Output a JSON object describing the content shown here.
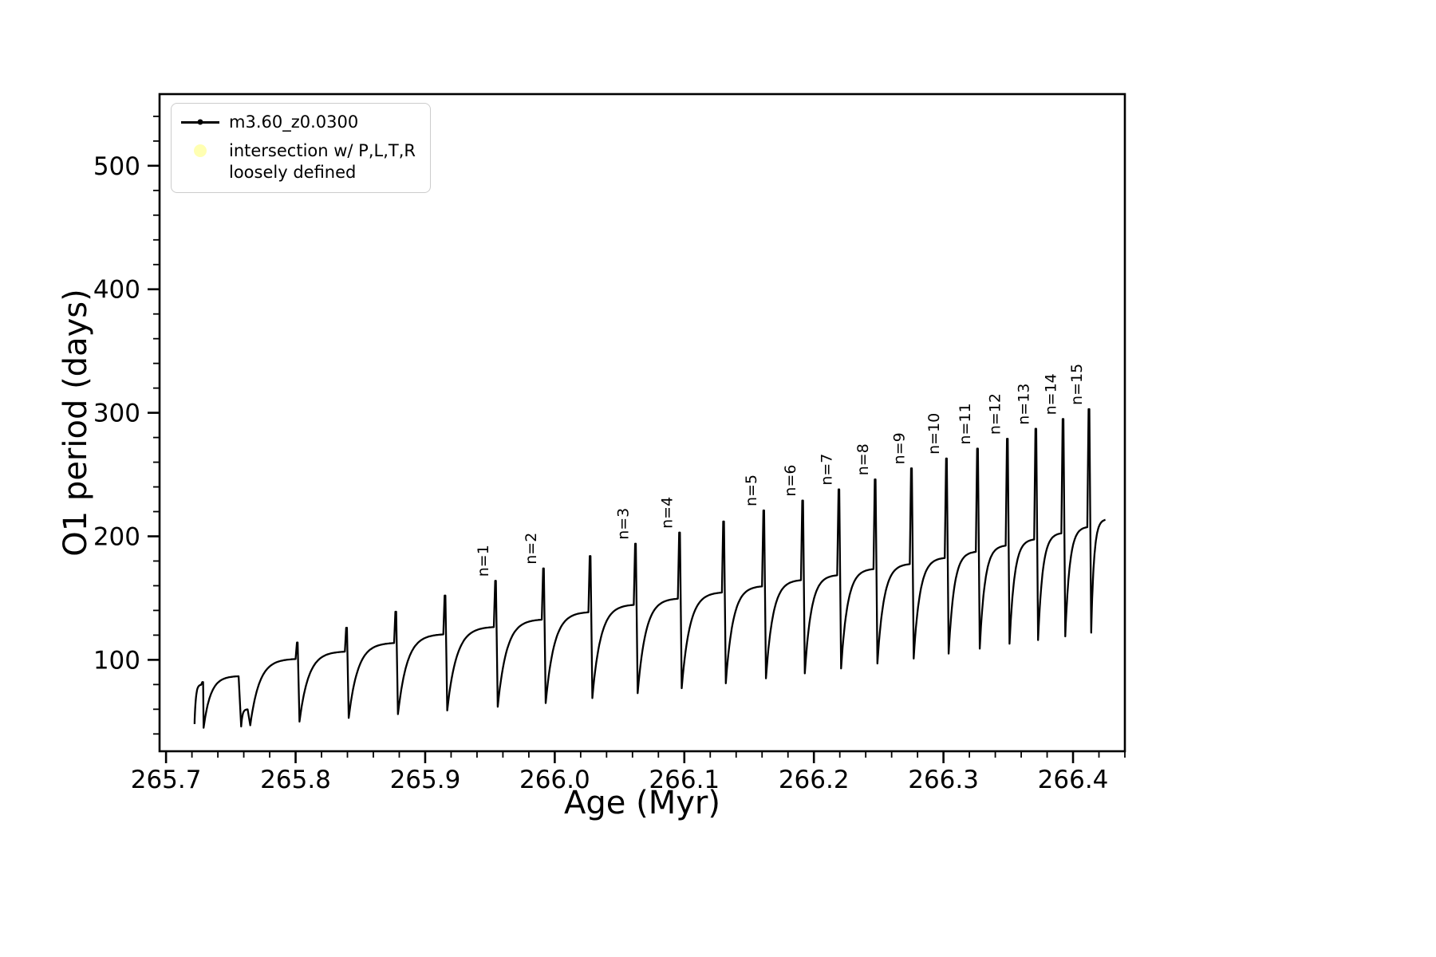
{
  "figure": {
    "background": "#ffffff",
    "xlabel": "Age (Myr)",
    "ylabel": "O1 period (days)",
    "line_color": "#000000",
    "intersection_marker_color": "#ffffaa"
  },
  "legend": {
    "position": "upper left",
    "items": [
      {
        "label": "m3.60_z0.0300",
        "marker": "line-with-dot",
        "color": "#000000"
      },
      {
        "label": "intersection w/ P,L,T,R\nloosely defined",
        "marker": "pale-yellow-circle",
        "color": "#ffffaa"
      }
    ]
  },
  "chart_data": {
    "type": "line",
    "title": "",
    "xlabel": "Age (Myr)",
    "ylabel": "O1 period (days)",
    "xlim": [
      265.695,
      266.44
    ],
    "ylim": [
      26,
      558
    ],
    "x_ticks": [
      265.7,
      265.8,
      265.9,
      266.0,
      266.1,
      266.2,
      266.3,
      266.4
    ],
    "y_ticks": [
      100,
      200,
      300,
      400,
      500
    ],
    "x_minor_step": 0.02,
    "y_minor_step": 20,
    "grid": false,
    "legend_position": "upper left",
    "series": [
      {
        "name": "m3.60_z0.0300",
        "color": "#000000",
        "style": "solid line of dense small point markers; sawtooth relaxation-oscillation pattern: each tooth rises steeply then flattens toward a plateau, ends in a narrow upward spike, then drops sharply to the next minimum",
        "teeth": [
          {
            "x0": 265.722,
            "x1": 265.727,
            "ymin": 48,
            "ytop": 80,
            "spike": 82,
            "label": null
          },
          {
            "x0": 265.729,
            "x1": 265.756,
            "ymin": 45,
            "ytop": 87,
            "spike": 88,
            "label": null
          },
          {
            "x0": 265.758,
            "x1": 265.763,
            "ymin": 46,
            "ytop": 60,
            "spike": 61,
            "label": null
          },
          {
            "x0": 265.765,
            "x1": 265.8,
            "ymin": 47,
            "ytop": 101,
            "spike": 114,
            "label": null
          },
          {
            "x0": 265.803,
            "x1": 265.838,
            "ymin": 50,
            "ytop": 107,
            "spike": 126,
            "label": null
          },
          {
            "x0": 265.841,
            "x1": 265.876,
            "ymin": 53,
            "ytop": 114,
            "spike": 139,
            "label": null
          },
          {
            "x0": 265.879,
            "x1": 265.914,
            "ymin": 56,
            "ytop": 121,
            "spike": 152,
            "label": null
          },
          {
            "x0": 265.917,
            "x1": 265.953,
            "ymin": 59,
            "ytop": 127,
            "spike": 164,
            "label": "n=1"
          },
          {
            "x0": 265.956,
            "x1": 265.99,
            "ymin": 62,
            "ytop": 133,
            "spike": 174,
            "label": "n=2"
          },
          {
            "x0": 265.993,
            "x1": 266.026,
            "ymin": 65,
            "ytop": 139,
            "spike": 184,
            "label": null
          },
          {
            "x0": 266.029,
            "x1": 266.061,
            "ymin": 69,
            "ytop": 145,
            "spike": 194,
            "label": "n=3"
          },
          {
            "x0": 266.064,
            "x1": 266.095,
            "ymin": 73,
            "ytop": 150,
            "spike": 203,
            "label": "n=4"
          },
          {
            "x0": 266.098,
            "x1": 266.129,
            "ymin": 77,
            "ytop": 155,
            "spike": 212,
            "label": null
          },
          {
            "x0": 266.132,
            "x1": 266.16,
            "ymin": 81,
            "ytop": 160,
            "spike": 221,
            "label": "n=5"
          },
          {
            "x0": 266.163,
            "x1": 266.19,
            "ymin": 85,
            "ytop": 165,
            "spike": 229,
            "label": "n=6"
          },
          {
            "x0": 266.193,
            "x1": 266.218,
            "ymin": 89,
            "ytop": 169,
            "spike": 238,
            "label": "n=7"
          },
          {
            "x0": 266.221,
            "x1": 266.246,
            "ymin": 93,
            "ytop": 174,
            "spike": 246,
            "label": "n=8"
          },
          {
            "x0": 266.249,
            "x1": 266.274,
            "ymin": 97,
            "ytop": 178,
            "spike": 255,
            "label": "n=9"
          },
          {
            "x0": 266.277,
            "x1": 266.301,
            "ymin": 101,
            "ytop": 183,
            "spike": 263,
            "label": "n=10"
          },
          {
            "x0": 266.304,
            "x1": 266.325,
            "ymin": 105,
            "ytop": 188,
            "spike": 271,
            "label": "n=11"
          },
          {
            "x0": 266.328,
            "x1": 266.348,
            "ymin": 109,
            "ytop": 193,
            "spike": 279,
            "label": "n=12"
          },
          {
            "x0": 266.351,
            "x1": 266.37,
            "ymin": 113,
            "ytop": 198,
            "spike": 287,
            "label": "n=13"
          },
          {
            "x0": 266.373,
            "x1": 266.391,
            "ymin": 116,
            "ytop": 203,
            "spike": 295,
            "label": "n=14"
          },
          {
            "x0": 266.394,
            "x1": 266.411,
            "ymin": 119,
            "ytop": 208,
            "spike": 303,
            "label": "n=15"
          },
          {
            "x0": 266.414,
            "x1": 266.425,
            "ymin": 122,
            "ytop": 214,
            "spike": null,
            "label": null
          }
        ]
      }
    ]
  }
}
